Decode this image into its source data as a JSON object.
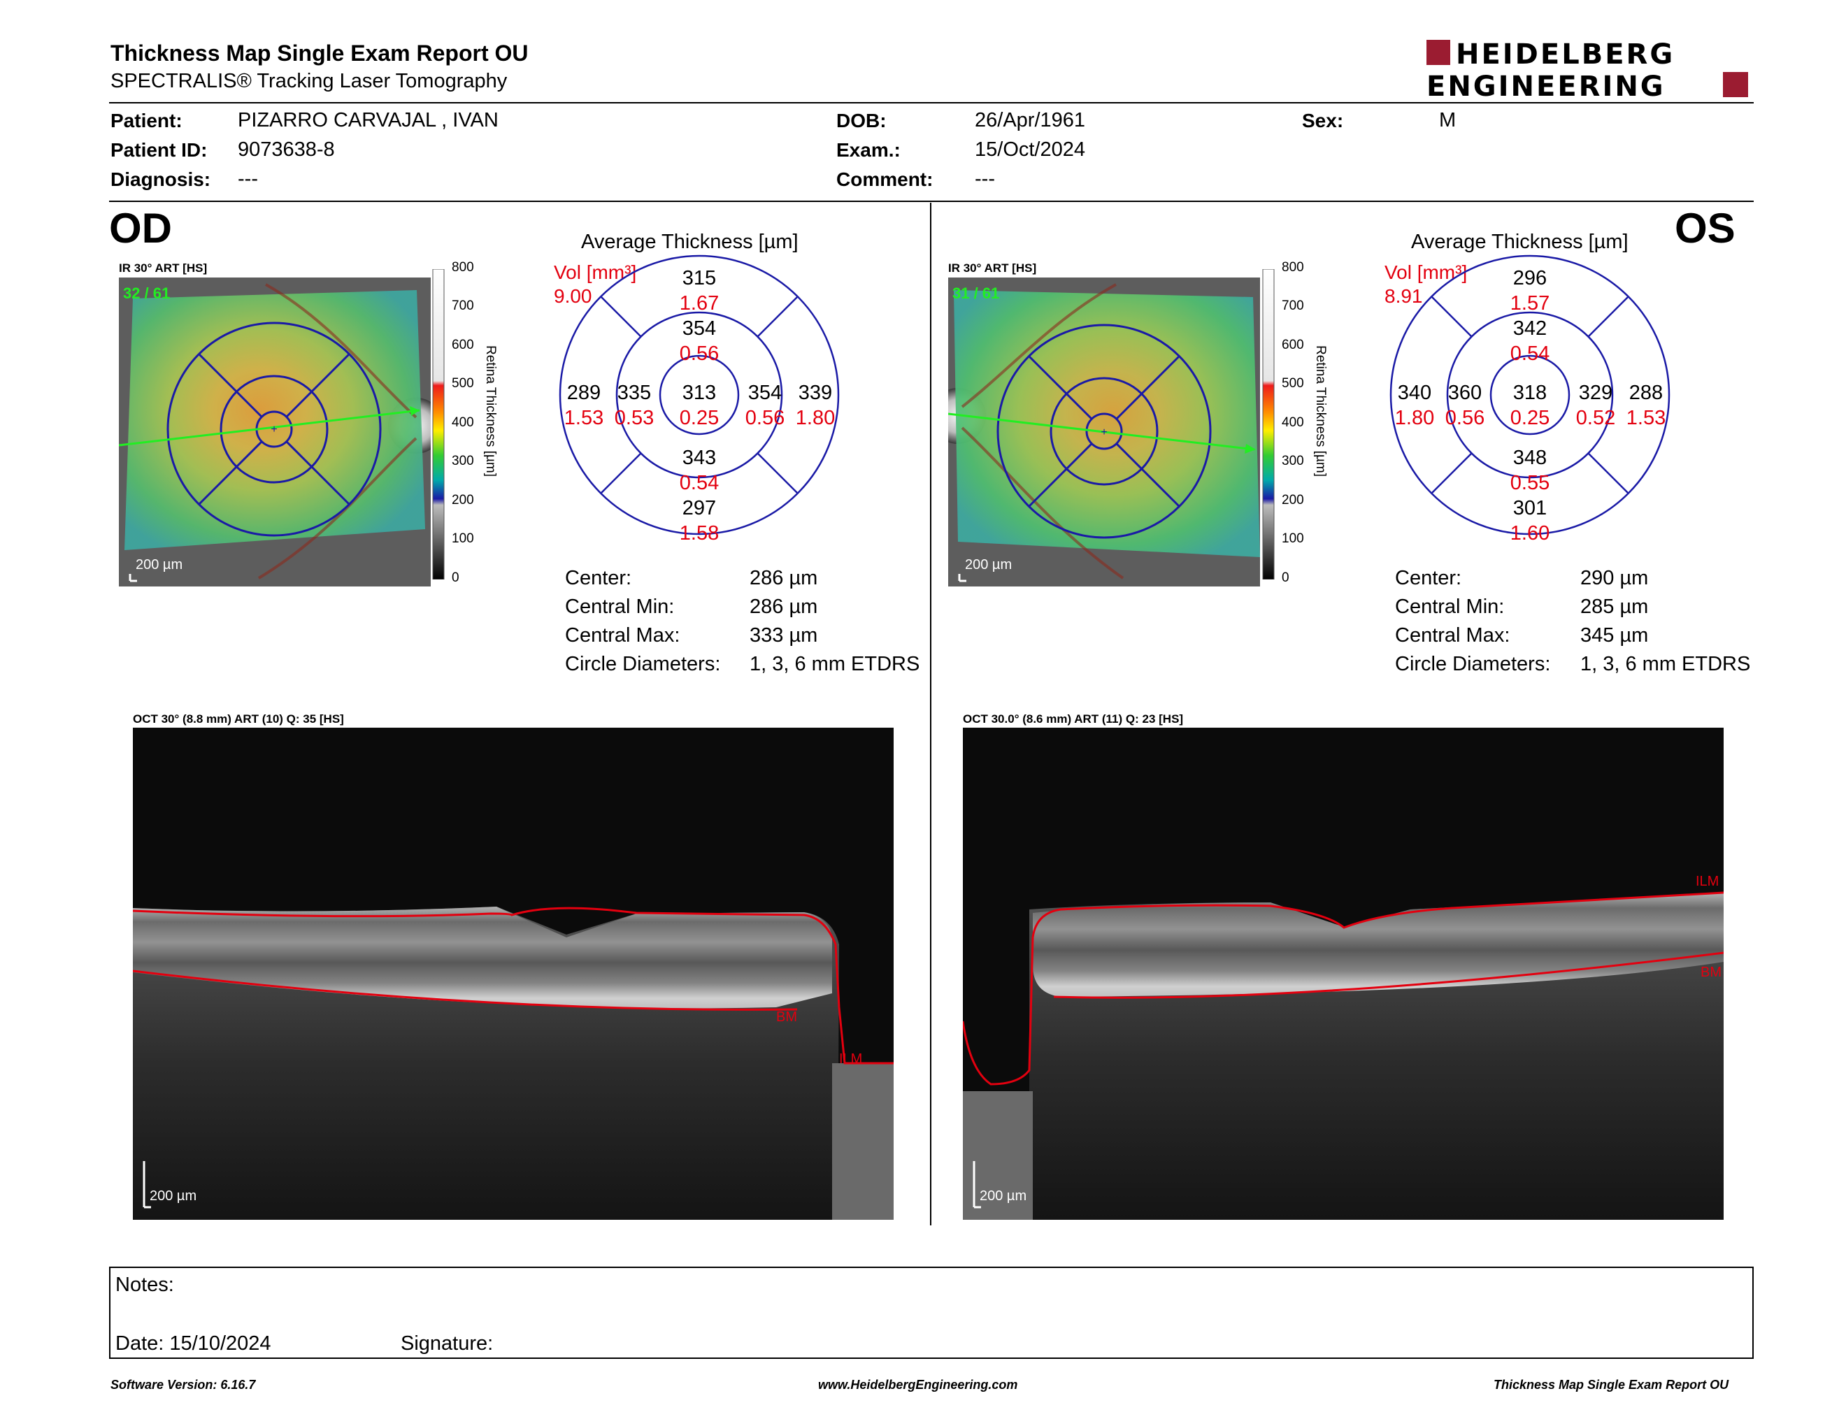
{
  "header": {
    "title": "Thickness Map Single Exam Report OU",
    "subtitle": "SPECTRALIS® Tracking Laser Tomography",
    "logo_line1": "HEIDELBERG",
    "logo_line2": "ENGINEERING"
  },
  "patient": {
    "patient_label": "Patient:",
    "patient_value": "PIZARRO CARVAJAL , IVAN",
    "id_label": "Patient ID:",
    "id_value": "9073638-8",
    "diagnosis_label": "Diagnosis:",
    "diagnosis_value": "---",
    "dob_label": "DOB:",
    "dob_value": "26/Apr/1961",
    "exam_label": "Exam.:",
    "exam_value": "15/Oct/2024",
    "comment_label": "Comment:",
    "comment_value": "---",
    "sex_label": "Sex:",
    "sex_value": "M"
  },
  "scale": {
    "ticks": [
      "800",
      "700",
      "600",
      "500",
      "400",
      "300",
      "200",
      "100",
      "0"
    ],
    "title": "Retina  Thickness [µm]"
  },
  "od": {
    "eye": "OD",
    "fundus_label": "IR 30° ART [HS]",
    "fundus_count": "32 / 61",
    "fundus_scale": "200 µm",
    "avg_title": "Average Thickness [µm]",
    "vol_label": "Vol [mm³]",
    "vol_total": "9.00",
    "sectors": {
      "outer_sup": {
        "thk": "315",
        "vol": "1.67"
      },
      "inner_sup": {
        "thk": "354",
        "vol": "0.56"
      },
      "outer_left": {
        "thk": "289",
        "vol": "1.53"
      },
      "inner_left": {
        "thk": "335",
        "vol": "0.53"
      },
      "center": {
        "thk": "313",
        "vol": "0.25"
      },
      "inner_right": {
        "thk": "354",
        "vol": "0.56"
      },
      "outer_right": {
        "thk": "339",
        "vol": "1.80"
      },
      "inner_inf": {
        "thk": "343",
        "vol": "0.54"
      },
      "outer_inf": {
        "thk": "297",
        "vol": "1.58"
      }
    },
    "stats": [
      {
        "label": "Center:",
        "value": "286 µm"
      },
      {
        "label": "Central Min:",
        "value": "286 µm"
      },
      {
        "label": "Central Max:",
        "value": "333 µm"
      },
      {
        "label": "Circle Diameters:",
        "value": "1, 3, 6 mm ETDRS"
      }
    ],
    "oct_label": "OCT 30° (8.8 mm) ART (10) Q: 35 [HS]",
    "oct_scale": "200 µm",
    "oct_bm": "BM",
    "oct_ilm": "ILM"
  },
  "os": {
    "eye": "OS",
    "fundus_label": "IR 30° ART [HS]",
    "fundus_count": "31 / 61",
    "fundus_scale": "200 µm",
    "avg_title": "Average Thickness [µm]",
    "vol_label": "Vol [mm³]",
    "vol_total": "8.91",
    "sectors": {
      "outer_sup": {
        "thk": "296",
        "vol": "1.57"
      },
      "inner_sup": {
        "thk": "342",
        "vol": "0.54"
      },
      "outer_left": {
        "thk": "340",
        "vol": "1.80"
      },
      "inner_left": {
        "thk": "360",
        "vol": "0.56"
      },
      "center": {
        "thk": "318",
        "vol": "0.25"
      },
      "inner_right": {
        "thk": "329",
        "vol": "0.52"
      },
      "outer_right": {
        "thk": "288",
        "vol": "1.53"
      },
      "inner_inf": {
        "thk": "348",
        "vol": "0.55"
      },
      "outer_inf": {
        "thk": "301",
        "vol": "1.60"
      }
    },
    "stats": [
      {
        "label": "Center:",
        "value": "290 µm"
      },
      {
        "label": "Central Min:",
        "value": "285 µm"
      },
      {
        "label": "Central Max:",
        "value": "345 µm"
      },
      {
        "label": "Circle Diameters:",
        "value": "1, 3, 6 mm ETDRS"
      }
    ],
    "oct_label": "OCT 30.0° (8.6 mm) ART (11) Q: 23 [HS]",
    "oct_scale": "200 µm",
    "oct_ilm": "ILM",
    "oct_bm": "BM"
  },
  "notes": {
    "notes_label": "Notes:",
    "date_label": "Date: 15/10/2024",
    "signature_label": "Signature:"
  },
  "footer": {
    "version": "Software Version: 6.16.7",
    "url": "www.HeidelbergEngineering.com",
    "report": "Thickness Map Single Exam Report OU"
  },
  "colors": {
    "accent_red": "#e3000f",
    "logo_red": "#9b1c31",
    "etdrs_blue": "#1a1aa6",
    "scan_green": "#22ee22"
  }
}
